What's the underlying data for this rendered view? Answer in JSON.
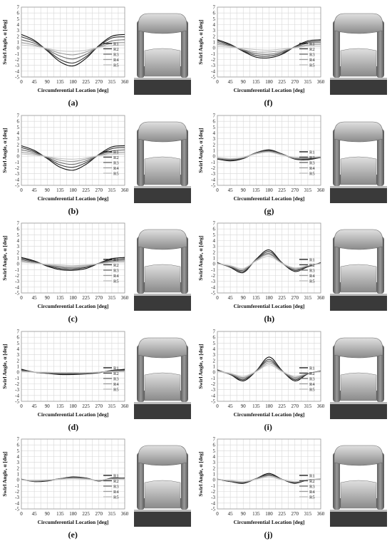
{
  "common": {
    "ylabel": "Swirl Angle, α [deg]",
    "xlabel": "Circumferential Location [deg]",
    "xticks": [
      "0",
      "45",
      "90",
      "135",
      "180",
      "225",
      "270",
      "315",
      "360"
    ],
    "yticks": [
      "7",
      "6",
      "5",
      "4",
      "3",
      "2",
      "1",
      "0",
      "-1",
      "-2",
      "-3",
      "-4",
      "-5"
    ],
    "legend": [
      "R1",
      "R2",
      "R3",
      "R4",
      "R5"
    ],
    "series_colors": [
      "#111111",
      "#3a3a3a",
      "#6a6a6a",
      "#9a9a9a",
      "#c4c4c4"
    ]
  },
  "chart_data": [
    {
      "label": "(a)",
      "type": "line",
      "xlabel": "Circumferential Location [deg]",
      "ylabel": "Swirl Angle, α [deg]",
      "xlim": [
        0,
        360
      ],
      "ylim": [
        -5,
        7
      ],
      "grid": true,
      "legend_position": "right",
      "x": [
        0,
        45,
        90,
        135,
        180,
        225,
        270,
        315,
        360
      ],
      "series": [
        {
          "name": "R1",
          "values": [
            2.3,
            1.3,
            -0.5,
            -2.4,
            -3.1,
            -1.8,
            0.4,
            2.0,
            2.3
          ]
        },
        {
          "name": "R2",
          "values": [
            1.9,
            1.1,
            -0.4,
            -2.0,
            -2.6,
            -1.5,
            0.3,
            1.7,
            1.9
          ]
        },
        {
          "name": "R3",
          "values": [
            1.4,
            0.8,
            -0.3,
            -1.4,
            -1.9,
            -1.1,
            0.2,
            1.2,
            1.4
          ]
        },
        {
          "name": "R4",
          "values": [
            0.9,
            0.5,
            -0.2,
            -0.9,
            -1.2,
            -0.7,
            0.1,
            0.8,
            0.9
          ]
        },
        {
          "name": "R5",
          "values": [
            0.5,
            0.3,
            -0.1,
            -0.5,
            -0.6,
            -0.4,
            0.1,
            0.4,
            0.5
          ]
        }
      ]
    },
    {
      "label": "(b)",
      "type": "line",
      "xlabel": "Circumferential Location [deg]",
      "ylabel": "Swirl Angle, α [deg]",
      "xlim": [
        0,
        360
      ],
      "ylim": [
        -5,
        7
      ],
      "grid": true,
      "legend_position": "right",
      "x": [
        0,
        45,
        90,
        135,
        180,
        225,
        270,
        315,
        360
      ],
      "series": [
        {
          "name": "R1",
          "values": [
            1.8,
            1.0,
            -0.4,
            -1.9,
            -2.4,
            -1.4,
            0.3,
            1.6,
            1.8
          ]
        },
        {
          "name": "R2",
          "values": [
            1.5,
            0.8,
            -0.3,
            -1.5,
            -1.9,
            -1.1,
            0.2,
            1.3,
            1.5
          ]
        },
        {
          "name": "R3",
          "values": [
            1.1,
            0.6,
            -0.2,
            -1.1,
            -1.4,
            -0.8,
            0.2,
            0.9,
            1.1
          ]
        },
        {
          "name": "R4",
          "values": [
            0.7,
            0.4,
            -0.1,
            -0.7,
            -0.9,
            -0.5,
            0.1,
            0.6,
            0.7
          ]
        },
        {
          "name": "R5",
          "values": [
            0.4,
            0.2,
            -0.1,
            -0.4,
            -0.5,
            -0.3,
            0.1,
            0.3,
            0.4
          ]
        }
      ]
    },
    {
      "label": "(c)",
      "type": "line",
      "xlabel": "Circumferential Location [deg]",
      "ylabel": "Swirl Angle, α [deg]",
      "xlim": [
        0,
        360
      ],
      "ylim": [
        -5,
        7
      ],
      "grid": true,
      "legend_position": "right",
      "x": [
        0,
        45,
        90,
        135,
        180,
        225,
        270,
        315,
        360
      ],
      "series": [
        {
          "name": "R1",
          "values": [
            1.1,
            0.5,
            -0.4,
            -1.0,
            -1.1,
            -0.8,
            0.1,
            0.9,
            1.1
          ]
        },
        {
          "name": "R2",
          "values": [
            0.9,
            0.4,
            -0.3,
            -0.8,
            -0.9,
            -0.6,
            0.1,
            0.7,
            0.9
          ]
        },
        {
          "name": "R3",
          "values": [
            0.7,
            0.3,
            -0.2,
            -0.6,
            -0.7,
            -0.5,
            0.1,
            0.5,
            0.7
          ]
        },
        {
          "name": "R4",
          "values": [
            0.5,
            0.2,
            -0.2,
            -0.4,
            -0.5,
            -0.3,
            0.0,
            0.4,
            0.5
          ]
        },
        {
          "name": "R5",
          "values": [
            0.3,
            0.1,
            -0.1,
            -0.2,
            -0.3,
            -0.2,
            0.0,
            0.2,
            0.3
          ]
        }
      ]
    },
    {
      "label": "(d)",
      "type": "line",
      "xlabel": "Circumferential Location [deg]",
      "ylabel": "Swirl Angle, α [deg]",
      "xlim": [
        0,
        360
      ],
      "ylim": [
        -5,
        7
      ],
      "grid": true,
      "legend_position": "right",
      "x": [
        0,
        45,
        90,
        135,
        180,
        225,
        270,
        315,
        360
      ],
      "series": [
        {
          "name": "R1",
          "values": [
            0.5,
            0.0,
            -0.2,
            -0.4,
            -0.4,
            -0.3,
            -0.1,
            0.3,
            0.5
          ]
        },
        {
          "name": "R2",
          "values": [
            0.4,
            0.0,
            -0.2,
            -0.3,
            -0.3,
            -0.2,
            -0.1,
            0.3,
            0.4
          ]
        },
        {
          "name": "R3",
          "values": [
            0.3,
            0.0,
            -0.1,
            -0.2,
            -0.2,
            -0.2,
            0.0,
            0.2,
            0.3
          ]
        },
        {
          "name": "R4",
          "values": [
            0.2,
            0.0,
            -0.1,
            -0.1,
            -0.1,
            -0.1,
            0.0,
            0.1,
            0.2
          ]
        },
        {
          "name": "R5",
          "values": [
            0.1,
            0.0,
            0.0,
            -0.1,
            -0.1,
            -0.1,
            0.0,
            0.1,
            0.1
          ]
        }
      ]
    },
    {
      "label": "(e)",
      "type": "line",
      "xlabel": "Circumferential Location [deg]",
      "ylabel": "Swirl Angle, α [deg]",
      "xlim": [
        0,
        360
      ],
      "ylim": [
        -5,
        7
      ],
      "grid": true,
      "legend_position": "right",
      "x": [
        0,
        45,
        90,
        135,
        180,
        225,
        270,
        315,
        360
      ],
      "series": [
        {
          "name": "R1",
          "values": [
            0.1,
            -0.3,
            -0.2,
            0.2,
            0.5,
            0.3,
            -0.2,
            0.3,
            0.3
          ]
        },
        {
          "name": "R2",
          "values": [
            0.1,
            -0.3,
            -0.1,
            0.2,
            0.4,
            0.3,
            -0.2,
            0.2,
            0.3
          ]
        },
        {
          "name": "R3",
          "values": [
            0.1,
            -0.2,
            -0.1,
            0.2,
            0.4,
            0.2,
            -0.1,
            0.2,
            0.2
          ]
        },
        {
          "name": "R4",
          "values": [
            0.0,
            -0.2,
            -0.1,
            0.1,
            0.3,
            0.2,
            -0.1,
            0.2,
            0.2
          ]
        },
        {
          "name": "R5",
          "values": [
            0.0,
            -0.1,
            0.0,
            0.1,
            0.2,
            0.1,
            -0.1,
            0.1,
            0.1
          ]
        }
      ]
    },
    {
      "label": "(f)",
      "type": "line",
      "xlabel": "Circumferential Location [deg]",
      "ylabel": "Swirl Angle, α [deg]",
      "xlim": [
        0,
        360
      ],
      "ylim": [
        -5,
        7
      ],
      "grid": true,
      "legend_position": "right",
      "x": [
        0,
        45,
        90,
        135,
        180,
        225,
        270,
        315,
        360
      ],
      "series": [
        {
          "name": "R1",
          "values": [
            1.4,
            0.6,
            -0.6,
            -1.6,
            -1.7,
            -1.1,
            0.2,
            1.2,
            1.4
          ]
        },
        {
          "name": "R2",
          "values": [
            1.2,
            0.5,
            -0.5,
            -1.3,
            -1.4,
            -0.9,
            0.2,
            1.0,
            1.2
          ]
        },
        {
          "name": "R3",
          "values": [
            0.9,
            0.4,
            -0.4,
            -1.0,
            -1.1,
            -0.7,
            0.1,
            0.8,
            0.9
          ]
        },
        {
          "name": "R4",
          "values": [
            0.6,
            0.3,
            -0.3,
            -0.7,
            -0.7,
            -0.5,
            0.1,
            0.5,
            0.6
          ]
        },
        {
          "name": "R5",
          "values": [
            0.3,
            0.1,
            -0.1,
            -0.3,
            -0.4,
            -0.2,
            0.0,
            0.3,
            0.3
          ]
        }
      ]
    },
    {
      "label": "(g)",
      "type": "line",
      "xlabel": "Circumferential Location [deg]",
      "ylabel": "Swirl Angle, α [deg]",
      "xlim": [
        0,
        360
      ],
      "ylim": [
        -5,
        7
      ],
      "grid": true,
      "legend_position": "right",
      "x": [
        0,
        45,
        90,
        135,
        180,
        225,
        270,
        315,
        360
      ],
      "series": [
        {
          "name": "R1",
          "values": [
            -0.5,
            -0.8,
            -0.4,
            0.6,
            1.1,
            0.4,
            -0.5,
            -0.6,
            -0.2
          ]
        },
        {
          "name": "R2",
          "values": [
            -0.4,
            -0.7,
            -0.3,
            0.6,
            1.0,
            0.4,
            -0.4,
            -0.5,
            -0.2
          ]
        },
        {
          "name": "R3",
          "values": [
            -0.4,
            -0.6,
            -0.3,
            0.5,
            0.9,
            0.3,
            -0.4,
            -0.4,
            -0.1
          ]
        },
        {
          "name": "R4",
          "values": [
            -0.3,
            -0.5,
            -0.2,
            0.5,
            0.8,
            0.3,
            -0.3,
            -0.3,
            -0.1
          ]
        },
        {
          "name": "R5",
          "values": [
            -0.2,
            -0.4,
            -0.2,
            0.4,
            0.7,
            0.2,
            -0.2,
            -0.2,
            -0.1
          ]
        }
      ]
    },
    {
      "label": "(h)",
      "type": "line",
      "xlabel": "Circumferential Location [deg]",
      "ylabel": "Swirl Angle, α [deg]",
      "xlim": [
        0,
        360
      ],
      "ylim": [
        -5,
        7
      ],
      "grid": true,
      "legend_position": "right",
      "x": [
        0,
        45,
        90,
        135,
        180,
        225,
        270,
        315,
        360
      ],
      "series": [
        {
          "name": "R1",
          "values": [
            0.2,
            -0.6,
            -1.5,
            0.8,
            2.4,
            0.2,
            -1.3,
            -0.5,
            0.2
          ]
        },
        {
          "name": "R2",
          "values": [
            0.1,
            -0.5,
            -1.3,
            0.7,
            2.1,
            0.2,
            -1.1,
            -0.4,
            0.1
          ]
        },
        {
          "name": "R3",
          "values": [
            0.1,
            -0.5,
            -1.1,
            0.7,
            1.8,
            0.1,
            -1.0,
            -0.4,
            0.1
          ]
        },
        {
          "name": "R4",
          "values": [
            0.1,
            -0.4,
            -1.0,
            0.6,
            1.6,
            0.1,
            -0.8,
            -0.3,
            0.1
          ]
        },
        {
          "name": "R5",
          "values": [
            0.0,
            -0.3,
            -0.8,
            0.5,
            1.3,
            0.1,
            -0.7,
            -0.3,
            0.0
          ]
        }
      ]
    },
    {
      "label": "(i)",
      "type": "line",
      "xlabel": "Circumferential Location [deg]",
      "ylabel": "Swirl Angle, α [deg]",
      "xlim": [
        0,
        360
      ],
      "ylim": [
        -5,
        7
      ],
      "grid": true,
      "legend_position": "right",
      "x": [
        0,
        45,
        90,
        135,
        180,
        225,
        270,
        315,
        360
      ],
      "series": [
        {
          "name": "R1",
          "values": [
            0.4,
            -0.4,
            -1.5,
            0.2,
            2.6,
            0.3,
            -1.5,
            -0.3,
            0.2
          ]
        },
        {
          "name": "R2",
          "values": [
            0.3,
            -0.4,
            -1.3,
            0.2,
            2.2,
            0.2,
            -1.3,
            -0.3,
            0.2
          ]
        },
        {
          "name": "R3",
          "values": [
            0.3,
            -0.3,
            -1.1,
            0.2,
            1.9,
            0.2,
            -1.1,
            -0.2,
            0.1
          ]
        },
        {
          "name": "R4",
          "values": [
            0.2,
            -0.3,
            -0.9,
            0.1,
            1.6,
            0.2,
            -0.9,
            -0.2,
            0.1
          ]
        },
        {
          "name": "R5",
          "values": [
            0.2,
            -0.2,
            -0.7,
            0.1,
            1.3,
            0.1,
            -0.7,
            -0.2,
            0.1
          ]
        }
      ]
    },
    {
      "label": "(j)",
      "type": "line",
      "xlabel": "Circumferential Location [deg]",
      "ylabel": "Swirl Angle, α [deg]",
      "xlim": [
        0,
        360
      ],
      "ylim": [
        -5,
        7
      ],
      "grid": true,
      "legend_position": "right",
      "x": [
        0,
        45,
        90,
        135,
        180,
        225,
        270,
        315,
        360
      ],
      "series": [
        {
          "name": "R1",
          "values": [
            0.1,
            -0.3,
            -0.6,
            0.2,
            1.1,
            0.1,
            -0.6,
            0.0,
            0.1
          ]
        },
        {
          "name": "R2",
          "values": [
            0.1,
            -0.3,
            -0.5,
            0.2,
            0.9,
            0.1,
            -0.5,
            0.0,
            0.1
          ]
        },
        {
          "name": "R3",
          "values": [
            0.1,
            -0.2,
            -0.4,
            0.2,
            0.8,
            0.1,
            -0.4,
            0.0,
            0.1
          ]
        },
        {
          "name": "R4",
          "values": [
            0.1,
            -0.2,
            -0.4,
            0.1,
            0.7,
            0.1,
            -0.4,
            0.0,
            0.1
          ]
        },
        {
          "name": "R5",
          "values": [
            0.0,
            -0.1,
            -0.3,
            0.1,
            0.5,
            0.0,
            -0.3,
            0.0,
            0.0
          ]
        }
      ]
    }
  ]
}
